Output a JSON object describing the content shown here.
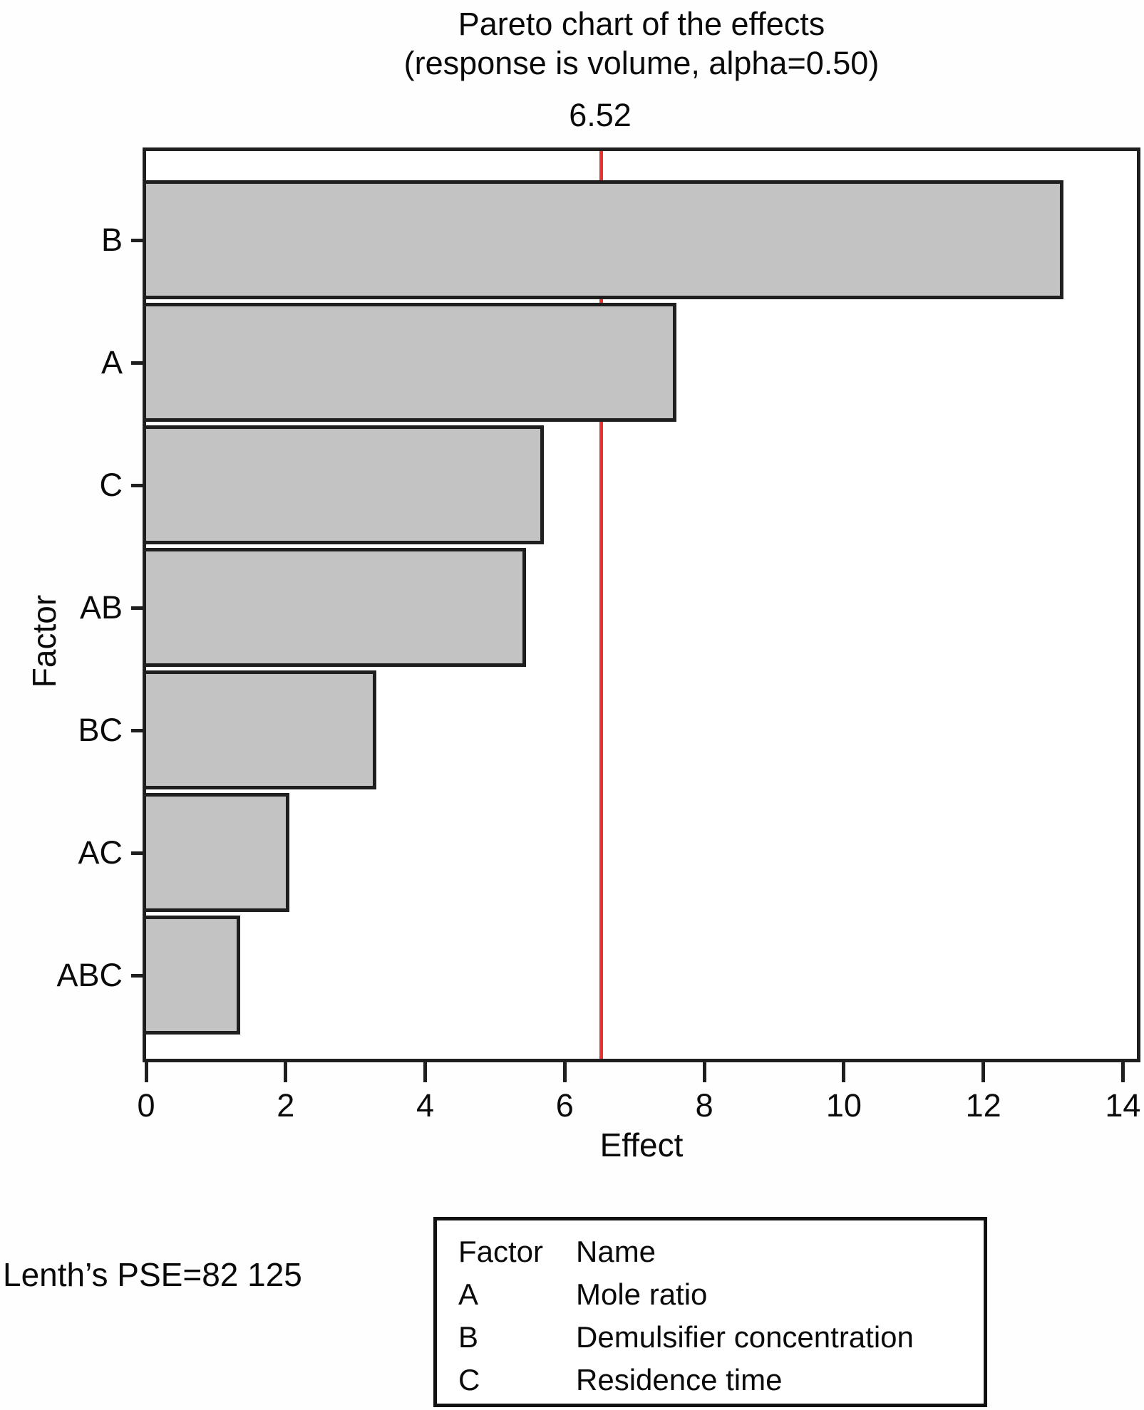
{
  "chart_data": {
    "type": "bar",
    "orientation": "horizontal",
    "title": "Pareto chart of the effects",
    "subtitle": "(response is volume, alpha=0.50)",
    "categories": [
      "B",
      "A",
      "C",
      "AB",
      "BC",
      "AC",
      "ABC"
    ],
    "values": [
      13.15,
      7.6,
      5.7,
      5.45,
      3.3,
      2.05,
      1.35
    ],
    "reference_line": {
      "value": 6.52,
      "label": "6.52",
      "color": "#e43530"
    },
    "xlabel": "Effect",
    "ylabel": "Factor",
    "xlim": [
      0,
      14.2
    ],
    "x_ticks": [
      0,
      2,
      4,
      6,
      8,
      10,
      12,
      14
    ],
    "grid": false,
    "bar_fill": "#c3c3c3",
    "bar_border": "#1f1f1f",
    "legend_position": "bottom"
  },
  "footer": {
    "lenths_pse": "Lenth’s PSE=82 125"
  },
  "legend": {
    "headers": [
      "Factor",
      "Name"
    ],
    "rows": [
      [
        "A",
        "Mole ratio"
      ],
      [
        "B",
        "Demulsifier concentration"
      ],
      [
        "C",
        "Residence time"
      ]
    ]
  }
}
